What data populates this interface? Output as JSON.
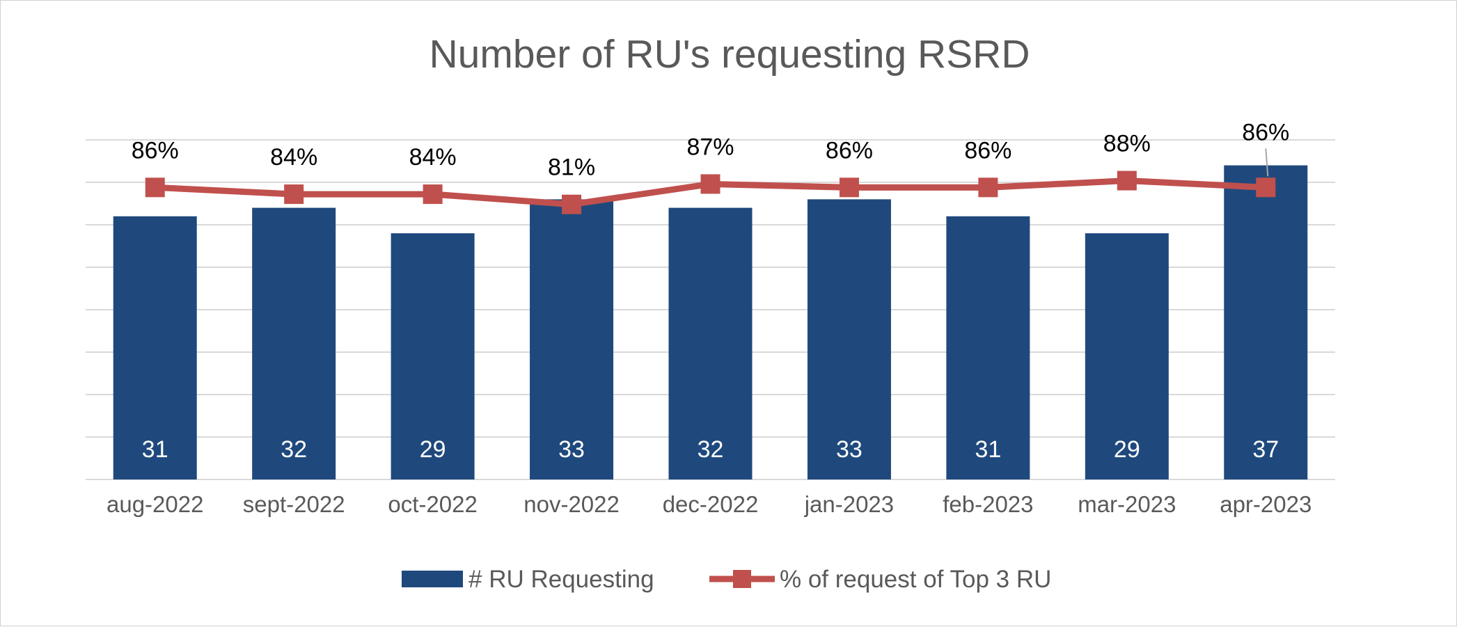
{
  "chart_data": {
    "type": "bar",
    "title": "Number of RU's requesting RSRD",
    "categories": [
      "aug-2022",
      "sept-2022",
      "oct-2022",
      "nov-2022",
      "dec-2022",
      "jan-2023",
      "feb-2023",
      "mar-2023",
      "apr-2023"
    ],
    "series": [
      {
        "name": "# RU Requesting",
        "type": "bar",
        "axis": "primary",
        "values": [
          31,
          32,
          29,
          33,
          32,
          33,
          31,
          29,
          37
        ],
        "color": "#1F497D",
        "data_labels": [
          "31",
          "32",
          "29",
          "33",
          "32",
          "33",
          "31",
          "29",
          "37"
        ]
      },
      {
        "name": "% of request of Top 3 RU",
        "type": "line",
        "axis": "secondary",
        "marker": "square",
        "values": [
          0.86,
          0.84,
          0.84,
          0.81,
          0.87,
          0.86,
          0.86,
          0.88,
          0.86
        ],
        "color": "#C0504D",
        "data_labels": [
          "86%",
          "84%",
          "84%",
          "81%",
          "87%",
          "86%",
          "86%",
          "88%",
          "86%"
        ]
      }
    ],
    "ylim": [
      0,
      40
    ],
    "y2lim": [
      0,
      1
    ],
    "y_axis_labels_visible": false,
    "grid": true,
    "legend": "bottom",
    "gridline_color": "#d9d9d9",
    "text_color": "#595959"
  }
}
